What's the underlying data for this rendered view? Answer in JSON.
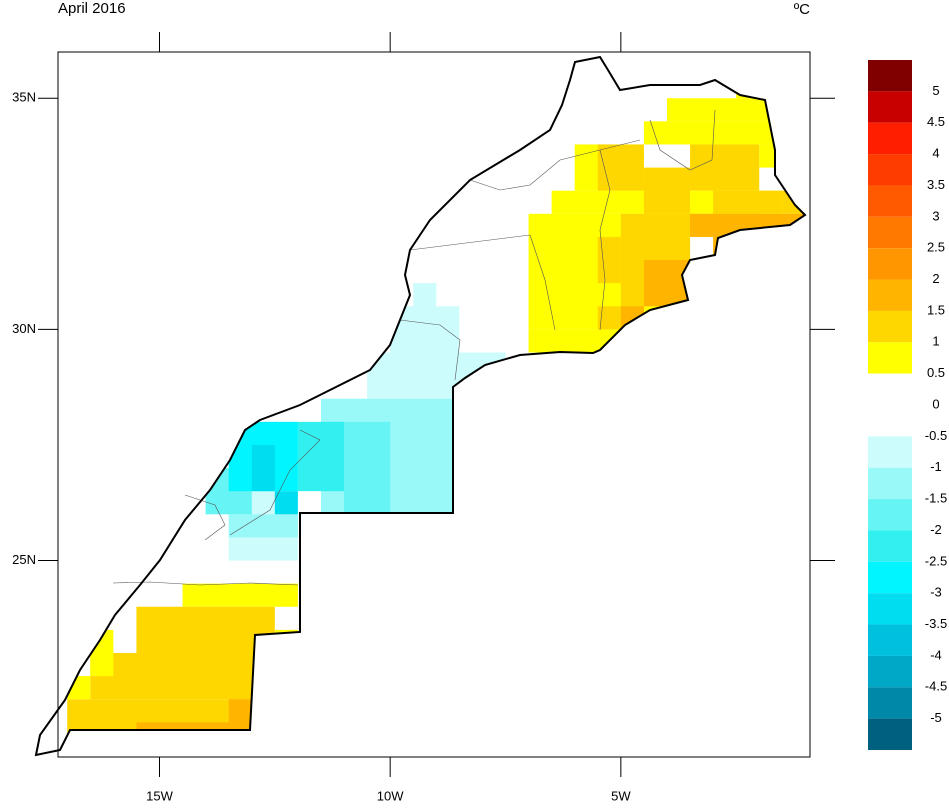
{
  "chart_data": {
    "type": "map",
    "title": "April 2016",
    "unit": "ºC",
    "xlim": [
      -17.2,
      -0.9
    ],
    "ylim": [
      20.75,
      36
    ],
    "xticks": [
      {
        "value": -15,
        "label": "15W"
      },
      {
        "value": -10,
        "label": "10W"
      },
      {
        "value": -5,
        "label": "5W"
      }
    ],
    "yticks": [
      {
        "value": 25,
        "label": "25N"
      },
      {
        "value": 30,
        "label": "30N"
      },
      {
        "value": 35,
        "label": "35N"
      }
    ],
    "cells": [
      {
        "lon": [
          -2.5,
          -2
        ],
        "lat": [
          35,
          35.5
        ],
        "value": 0.8
      },
      {
        "lon": [
          -4,
          -1.5
        ],
        "lat": [
          34.5,
          35
        ],
        "value": 0.8
      },
      {
        "lon": [
          -4.5,
          -1.5
        ],
        "lat": [
          34,
          34.5
        ],
        "value": 0.8
      },
      {
        "lon": [
          -6,
          -4.5
        ],
        "lat": [
          33,
          34
        ],
        "value": 0.8
      },
      {
        "lon": [
          -2,
          -1.5
        ],
        "lat": [
          33.5,
          34
        ],
        "value": 0.8
      },
      {
        "lon": [
          -6.5,
          -1.5
        ],
        "lat": [
          32.5,
          33
        ],
        "value": 0.8
      },
      {
        "lon": [
          -7,
          -3.5
        ],
        "lat": [
          30,
          32.5
        ],
        "value": 0.8
      },
      {
        "lon": [
          -7,
          -5
        ],
        "lat": [
          29.5,
          30
        ],
        "value": 0.8
      },
      {
        "lon": [
          -5.5,
          -4.5
        ],
        "lat": [
          33,
          34
        ],
        "value": 1.2
      },
      {
        "lon": [
          -3.5,
          -2
        ],
        "lat": [
          33,
          34
        ],
        "value": 1.2
      },
      {
        "lon": [
          -4.5,
          -3.5
        ],
        "lat": [
          32.5,
          33.5
        ],
        "value": 1.2
      },
      {
        "lon": [
          -3,
          -1.5
        ],
        "lat": [
          32.5,
          33
        ],
        "value": 1.2
      },
      {
        "lon": [
          -5,
          -3.5
        ],
        "lat": [
          30.5,
          32.5
        ],
        "value": 1.2
      },
      {
        "lon": [
          -5.5,
          -5
        ],
        "lat": [
          31,
          32
        ],
        "value": 1.2
      },
      {
        "lon": [
          -3.5,
          -2
        ],
        "lat": [
          32,
          32.5
        ],
        "value": 1.2
      },
      {
        "lon": [
          -1.5,
          -1
        ],
        "lat": [
          32.5,
          33
        ],
        "value": 1.2
      },
      {
        "lon": [
          -5.5,
          -4.5
        ],
        "lat": [
          30,
          30.5
        ],
        "value": 1.2
      },
      {
        "lon": [
          -3.5,
          -1
        ],
        "lat": [
          32,
          32.5
        ],
        "value": 1.7
      },
      {
        "lon": [
          -4.5,
          -3.5
        ],
        "lat": [
          30.5,
          31.5
        ],
        "value": 1.7
      },
      {
        "lon": [
          -5,
          -4.5
        ],
        "lat": [
          30,
          30.5
        ],
        "value": 1.7
      },
      {
        "lon": [
          -3,
          -2
        ],
        "lat": [
          31.5,
          32
        ],
        "value": 1.7
      },
      {
        "lon": [
          -9.5,
          -9
        ],
        "lat": [
          30.5,
          31
        ],
        "value": -0.8
      },
      {
        "lon": [
          -10,
          -8.5
        ],
        "lat": [
          29.5,
          30.5
        ],
        "value": -0.8
      },
      {
        "lon": [
          -10.5,
          -7.5
        ],
        "lat": [
          28.5,
          29.5
        ],
        "value": -0.8
      },
      {
        "lon": [
          -14,
          -12.5
        ],
        "lat": [
          26,
          26.5
        ],
        "value": -0.8
      },
      {
        "lon": [
          -13.5,
          -12
        ],
        "lat": [
          25,
          25.5
        ],
        "value": -0.8
      },
      {
        "lon": [
          -11.5,
          -8.5
        ],
        "lat": [
          26,
          28.5
        ],
        "value": -1.2
      },
      {
        "lon": [
          -13.5,
          -12
        ],
        "lat": [
          25.5,
          26
        ],
        "value": -1.2
      },
      {
        "lon": [
          -11,
          -10
        ],
        "lat": [
          26,
          28
        ],
        "value": -1.7
      },
      {
        "lon": [
          -14,
          -13
        ],
        "lat": [
          26,
          27
        ],
        "value": -1.7
      },
      {
        "lon": [
          -12,
          -11
        ],
        "lat": [
          26.5,
          28
        ],
        "value": -2.2
      },
      {
        "lon": [
          -13.5,
          -12
        ],
        "lat": [
          26.5,
          28
        ],
        "value": -2.7
      },
      {
        "lon": [
          -13,
          -12.5
        ],
        "lat": [
          26.5,
          27.5
        ],
        "value": -3.2
      },
      {
        "lon": [
          -12.5,
          -12
        ],
        "lat": [
          26,
          26.5
        ],
        "value": -3.2
      },
      {
        "lon": [
          -14.5,
          -12
        ],
        "lat": [
          24,
          24.5
        ],
        "value": 0.8
      },
      {
        "lon": [
          -15.5,
          -12.5
        ],
        "lat": [
          23,
          24
        ],
        "value": 1.2
      },
      {
        "lon": [
          -12.5,
          -12
        ],
        "lat": [
          23,
          23.5
        ],
        "value": 0.8
      },
      {
        "lon": [
          -16.5,
          -12.5
        ],
        "lat": [
          22,
          23
        ],
        "value": 1.2
      },
      {
        "lon": [
          -17,
          -13
        ],
        "lat": [
          21,
          22
        ],
        "value": 1.2
      },
      {
        "lon": [
          -15.5,
          -13
        ],
        "lat": [
          21,
          21.5
        ],
        "value": 1.7
      },
      {
        "lon": [
          -13.5,
          -13
        ],
        "lat": [
          21.5,
          22
        ],
        "value": 1.7
      },
      {
        "lon": [
          -16.5,
          -16
        ],
        "lat": [
          22.5,
          23.5
        ],
        "value": 0.8
      },
      {
        "lon": [
          -17,
          -16.5
        ],
        "lat": [
          22,
          22.5
        ],
        "value": 0.8
      }
    ],
    "colorbar": {
      "levels": [
        5,
        4.5,
        4,
        3.5,
        3,
        2.5,
        2,
        1.5,
        1,
        0.5,
        0,
        -0.5,
        -1,
        -1.5,
        -2,
        -2.5,
        -3,
        -3.5,
        -4,
        -4.5,
        -5
      ],
      "colors": [
        "#800000",
        "#c80000",
        "#ff1e00",
        "#ff3c00",
        "#ff5a00",
        "#ff7800",
        "#ff9600",
        "#ffb400",
        "#ffd700",
        "#ffff00",
        "#ffffff",
        "#ffffff",
        "#ccfcfc",
        "#99f8f8",
        "#66f4f4",
        "#33f0f0",
        "#00f5ff",
        "#00dcf0",
        "#00c0e0",
        "#00a8c8",
        "#0088a8",
        "#006080"
      ]
    }
  }
}
